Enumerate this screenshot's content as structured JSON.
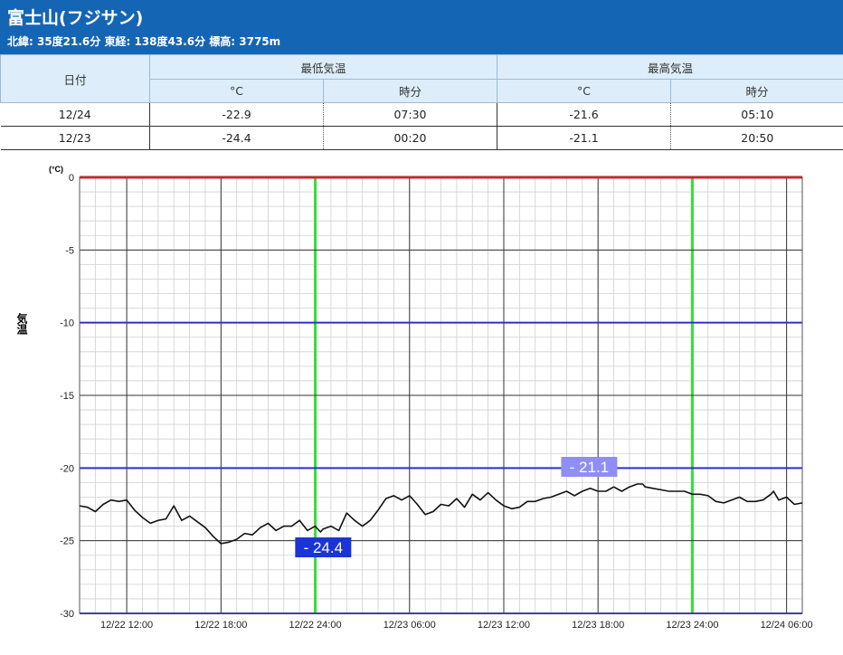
{
  "station": {
    "name": "富士山(フジサン)",
    "meta": "北緯: 35度21.6分 東経: 138度43.6分 標高: 3775m"
  },
  "table": {
    "date_header": "日付",
    "min_header": "最低気温",
    "max_header": "最高気温",
    "unit_c": "°C",
    "time_header": "時分",
    "rows": [
      {
        "date": "12/24",
        "min_temp": "-22.9",
        "min_time": "07:30",
        "max_temp": "-21.6",
        "max_time": "05:10"
      },
      {
        "date": "12/23",
        "min_temp": "-24.4",
        "min_time": "00:20",
        "max_temp": "-21.1",
        "max_time": "20:50"
      }
    ]
  },
  "colors": {
    "header_bg": "#1565b5",
    "zero_line": "#e0201f",
    "major_line": "#2e2fcf",
    "day_line": "#33e033",
    "temp_line": "#111111",
    "min_label_bg": "#1a34d6",
    "max_label_bg": "#8f8ef5"
  },
  "chart_data": {
    "type": "line",
    "ylabel": "気温",
    "yunit": "(°C)",
    "ylim": [
      -30,
      0
    ],
    "yticks": [
      0,
      -5,
      -10,
      -15,
      -20,
      -25,
      -30
    ],
    "xlim": [
      "12/22 09:00",
      "12/24 07:00"
    ],
    "xtick_labels": [
      "12/22 12:00",
      "12/22 18:00",
      "12/22 24:00",
      "12/23 06:00",
      "12/23 12:00",
      "12/23 18:00",
      "12/23 24:00",
      "12/24 06:00"
    ],
    "grid": true,
    "annotations": [
      {
        "text": "- 24.4",
        "x": "12/23 00:20",
        "y": -24.4,
        "kind": "min"
      },
      {
        "text": "- 21.1",
        "x": "12/23 20:50",
        "y": -21.1,
        "kind": "max"
      }
    ],
    "series": [
      {
        "x": [
          "12/22 09:00",
          "12/22 09:30",
          "12/22 10:00",
          "12/22 10:30",
          "12/22 11:00",
          "12/22 11:30",
          "12/22 12:00",
          "12/22 12:30",
          "12/22 13:00",
          "12/22 13:30",
          "12/22 14:00",
          "12/22 14:30",
          "12/22 15:00",
          "12/22 15:30",
          "12/22 16:00",
          "12/22 16:30",
          "12/22 17:00",
          "12/22 17:30",
          "12/22 18:00",
          "12/22 18:30",
          "12/22 19:00",
          "12/22 19:30",
          "12/22 20:00",
          "12/22 20:30",
          "12/22 21:00",
          "12/22 21:30",
          "12/22 22:00",
          "12/22 22:30",
          "12/22 23:00",
          "12/22 23:30",
          "12/23 00:00",
          "12/23 00:20",
          "12/23 00:30",
          "12/23 01:00",
          "12/23 01:30",
          "12/23 02:00",
          "12/23 02:30",
          "12/23 03:00",
          "12/23 03:30",
          "12/23 04:00",
          "12/23 04:30",
          "12/23 05:00",
          "12/23 05:30",
          "12/23 06:00",
          "12/23 06:30",
          "12/23 07:00",
          "12/23 07:30",
          "12/23 08:00",
          "12/23 08:30",
          "12/23 09:00",
          "12/23 09:30",
          "12/23 10:00",
          "12/23 10:30",
          "12/23 11:00",
          "12/23 11:30",
          "12/23 12:00",
          "12/23 12:30",
          "12/23 13:00",
          "12/23 13:30",
          "12/23 14:00",
          "12/23 14:30",
          "12/23 15:00",
          "12/23 15:30",
          "12/23 16:00",
          "12/23 16:30",
          "12/23 17:00",
          "12/23 17:30",
          "12/23 18:00",
          "12/23 18:30",
          "12/23 19:00",
          "12/23 19:30",
          "12/23 20:00",
          "12/23 20:30",
          "12/23 20:50",
          "12/23 21:00",
          "12/23 21:30",
          "12/23 22:00",
          "12/23 22:30",
          "12/23 23:00",
          "12/23 23:30",
          "12/24 00:00",
          "12/24 00:30",
          "12/24 01:00",
          "12/24 01:30",
          "12/24 02:00",
          "12/24 02:30",
          "12/24 03:00",
          "12/24 03:30",
          "12/24 04:00",
          "12/24 04:30",
          "12/24 05:00",
          "12/24 05:10",
          "12/24 05:30",
          "12/24 06:00",
          "12/24 06:30",
          "12/24 07:00"
        ],
        "values": [
          -22.6,
          -22.7,
          -23.0,
          -22.5,
          -22.2,
          -22.3,
          -22.2,
          -22.9,
          -23.4,
          -23.8,
          -23.6,
          -23.5,
          -22.6,
          -23.6,
          -23.3,
          -23.7,
          -24.1,
          -24.7,
          -25.2,
          -25.1,
          -24.9,
          -24.5,
          -24.6,
          -24.1,
          -23.8,
          -24.3,
          -24.0,
          -24.0,
          -23.6,
          -24.3,
          -24.0,
          -24.4,
          -24.2,
          -24.0,
          -24.3,
          -23.1,
          -23.6,
          -24.0,
          -23.6,
          -22.9,
          -22.1,
          -21.9,
          -22.2,
          -21.9,
          -22.5,
          -23.2,
          -23.0,
          -22.5,
          -22.6,
          -22.1,
          -22.7,
          -21.8,
          -22.2,
          -21.7,
          -22.2,
          -22.6,
          -22.8,
          -22.7,
          -22.3,
          -22.3,
          -22.1,
          -22.0,
          -21.8,
          -21.6,
          -21.9,
          -21.6,
          -21.4,
          -21.6,
          -21.6,
          -21.3,
          -21.6,
          -21.3,
          -21.1,
          -21.1,
          -21.3,
          -21.4,
          -21.5,
          -21.6,
          -21.6,
          -21.6,
          -21.8,
          -21.8,
          -21.9,
          -22.3,
          -22.4,
          -22.2,
          -22.0,
          -22.3,
          -22.3,
          -22.2,
          -21.8,
          -21.6,
          -22.2,
          -22.0,
          -22.5,
          -22.4
        ]
      }
    ]
  }
}
